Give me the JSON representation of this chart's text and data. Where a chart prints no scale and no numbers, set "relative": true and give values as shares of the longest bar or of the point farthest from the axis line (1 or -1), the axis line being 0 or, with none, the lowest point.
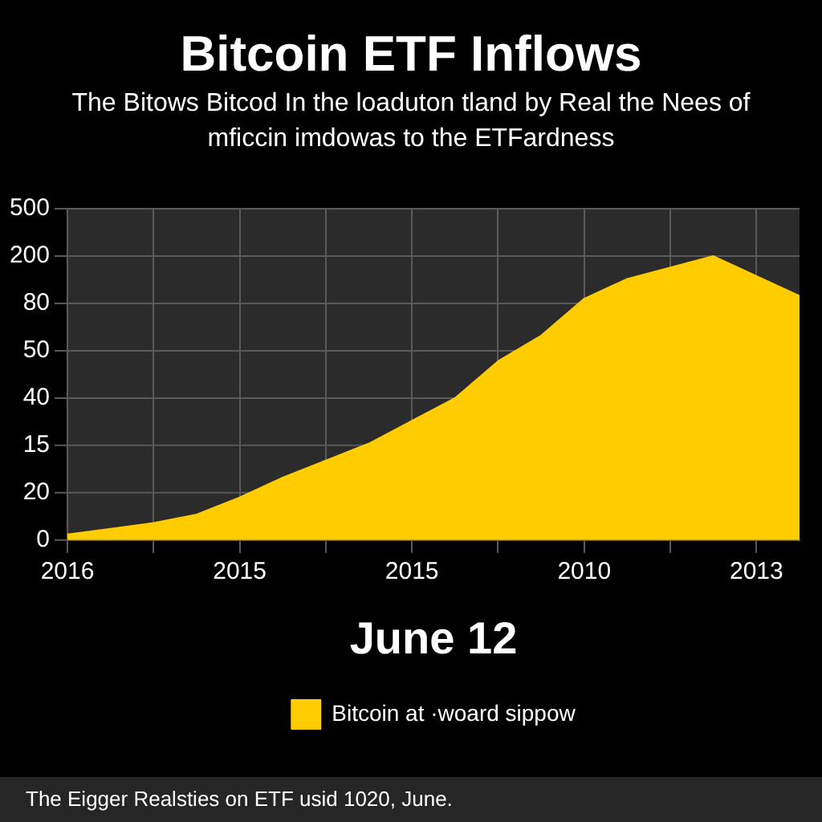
{
  "chart_data": {
    "type": "area",
    "title": "Bitcoin ETF Inflows",
    "subtitle": "The Bitows Bitcod In the loaduton tland by Real the Nees of mficcin imdowas to the ETFardness",
    "xlabel": "June 12",
    "annotations": [
      "The Eigger Realsties on ETF usid 1020, June.",
      "0",
      "20",
      "15",
      "40",
      "50",
      "80",
      "200",
      "500"
    ],
    "relative": true,
    "categories": [
      "2016",
      null,
      null,
      null,
      "2015",
      null,
      null,
      null,
      "2015",
      null,
      null,
      null,
      "2010",
      null,
      null,
      null,
      "2013",
      null
    ],
    "series": [
      {
        "name": "Bitcoin at ·woard sippow",
        "color": "#ffcc00",
        "values": [
          0.02,
          0.04,
          0.06,
          0.09,
          0.15,
          0.22,
          0.28,
          0.34,
          0.42,
          0.5,
          0.63,
          0.72,
          0.85,
          0.92,
          0.96,
          1.0,
          0.93,
          0.86
        ]
      }
    ],
    "grid": true,
    "legend": "bottom"
  }
}
